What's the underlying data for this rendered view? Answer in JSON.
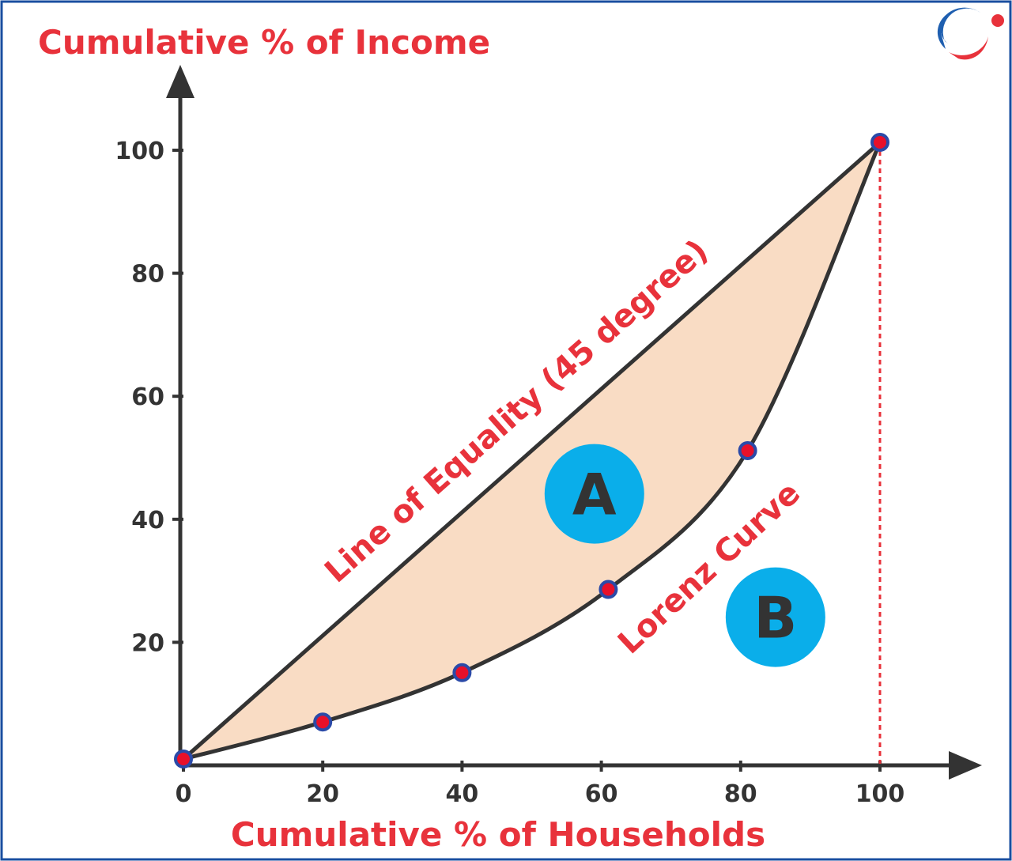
{
  "colors": {
    "frame": "#1a4fa0",
    "axis": "#333333",
    "curve": "#333333",
    "fill": "#f9dcc4",
    "marker_fill": "#e8102a",
    "marker_stroke": "#2b4aa8",
    "text_red": "#e8323b",
    "circle_blue": "#0aaeea",
    "drop_line": "#e8323b"
  },
  "logo": {
    "icon": "brand-globe-icon"
  },
  "chart_data": {
    "type": "line",
    "xlabel": "Cumulative % of Households",
    "ylabel": "Cumulative % of Income",
    "xlim": [
      0,
      100
    ],
    "ylim": [
      0,
      100
    ],
    "x_ticks": [
      "0",
      "20",
      "40",
      "60",
      "80",
      "100"
    ],
    "y_ticks": [
      "20",
      "40",
      "60",
      "80",
      "100"
    ],
    "x_tick_values": [
      0,
      20,
      40,
      60,
      80,
      100
    ],
    "y_tick_values": [
      20,
      40,
      60,
      80,
      100
    ],
    "grid": false,
    "series": [
      {
        "name": "Line of Equality (45 degree)",
        "x": [
          0,
          100
        ],
        "y": [
          0,
          100
        ]
      },
      {
        "name": "Lorenz Curve",
        "x": [
          0,
          20,
          40,
          61,
          81,
          100
        ],
        "y": [
          0,
          6,
          14,
          27.5,
          50,
          100
        ]
      }
    ],
    "regions": [
      {
        "label": "A",
        "x": 59,
        "y": 43
      },
      {
        "label": "B",
        "x": 85,
        "y": 23
      }
    ],
    "annotations": {
      "equality_label": "Line of Equality (45 degree)",
      "lorenz_label": "Lorenz Curve"
    }
  }
}
